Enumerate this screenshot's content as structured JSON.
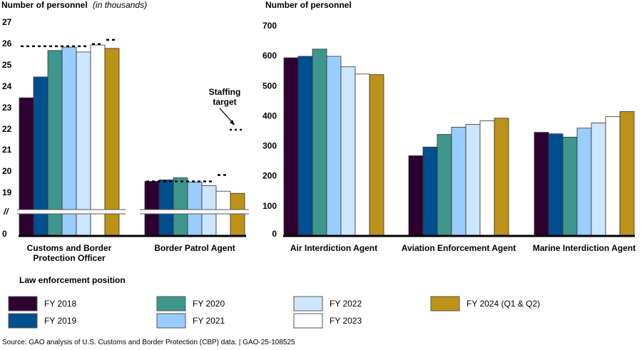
{
  "chart_data": [
    {
      "type": "bar",
      "title": "Number of personnel",
      "title_italic_suffix": "(in thousands)",
      "xlabel": "",
      "ylabel": "Number of personnel (in thousands)",
      "ylim": [
        0,
        27
      ],
      "axis_break": {
        "from": 0,
        "to": 18.5,
        "label": "//"
      },
      "yticks": [
        "27",
        "26",
        "25",
        "24",
        "23",
        "22",
        "21",
        "20",
        "19",
        "0"
      ],
      "categories": [
        "Customs and Border Protection Officer",
        "Border Patrol Agent"
      ],
      "category_label_lines": [
        [
          "Customs and Border",
          "Protection Officer"
        ],
        [
          "Border Patrol Agent"
        ]
      ],
      "series": [
        {
          "name": "FY 2018",
          "values": [
            23.45,
            19.53
          ]
        },
        {
          "name": "FY 2019",
          "values": [
            24.43,
            19.6
          ]
        },
        {
          "name": "FY 2020",
          "values": [
            25.67,
            19.7
          ]
        },
        {
          "name": "FY 2021",
          "values": [
            25.83,
            19.5
          ]
        },
        {
          "name": "FY 2022",
          "values": [
            25.6,
            19.33
          ]
        },
        {
          "name": "FY 2023",
          "values": [
            25.93,
            19.07
          ]
        },
        {
          "name": "FY 2024 (Q1 & Q2)",
          "values": [
            25.77,
            18.97
          ]
        }
      ],
      "staffing_target": [
        {
          "category": "Customs and Border Protection Officer",
          "years": [
            "FY 2018",
            "FY 2019",
            "FY 2020",
            "FY 2021",
            "FY 2022"
          ],
          "value": 25.87
        },
        {
          "category": "Customs and Border Protection Officer",
          "years": [
            "FY 2023"
          ],
          "value": 25.97
        },
        {
          "category": "Customs and Border Protection Officer",
          "years": [
            "FY 2024 (Q1 & Q2)"
          ],
          "value": 26.17
        },
        {
          "category": "Border Patrol Agent",
          "years": [
            "FY 2018",
            "FY 2019",
            "FY 2020",
            "FY 2021",
            "FY 2022"
          ],
          "value": 19.53
        },
        {
          "category": "Border Patrol Agent",
          "years": [
            "FY 2023"
          ],
          "value": 19.83
        }
      ],
      "annotation": {
        "text_lines": [
          "Staffing",
          "target"
        ],
        "marker_value": 21.9
      },
      "grid": false
    },
    {
      "type": "bar",
      "title": "Number of personnel",
      "xlabel": "",
      "ylabel": "Number of personnel",
      "ylim": [
        0,
        700
      ],
      "yticks": [
        "700",
        "600",
        "500",
        "400",
        "300",
        "200",
        "100",
        "0"
      ],
      "categories": [
        "Air Interdiction Agent",
        "Aviation Enforcement Agent",
        "Marine Interdiction Agent"
      ],
      "series": [
        {
          "name": "FY 2018",
          "values": [
            593,
            267,
            345
          ]
        },
        {
          "name": "FY 2019",
          "values": [
            598,
            296,
            340
          ]
        },
        {
          "name": "FY 2020",
          "values": [
            622,
            338,
            329
          ]
        },
        {
          "name": "FY 2021",
          "values": [
            598,
            362,
            359
          ]
        },
        {
          "name": "FY 2022",
          "values": [
            563,
            371,
            376
          ]
        },
        {
          "name": "FY 2023",
          "values": [
            539,
            383,
            397
          ]
        },
        {
          "name": "FY 2024 (Q1 & Q2)",
          "values": [
            537,
            392,
            414
          ]
        }
      ],
      "grid": false
    }
  ],
  "legend": {
    "title": "Law enforcement position",
    "placement": "bottom",
    "items": [
      {
        "label": "FY 2018",
        "color": "#2e0030"
      },
      {
        "label": "FY 2019",
        "color": "#004f8f"
      },
      {
        "label": "FY 2020",
        "color": "#3f968c"
      },
      {
        "label": "FY 2021",
        "color": "#99ccff"
      },
      {
        "label": "FY 2022",
        "color": "#cce6ff"
      },
      {
        "label": "FY 2023",
        "color": "#ffffff"
      },
      {
        "label": "FY 2024 (Q1 & Q2)",
        "color": "#bd9218"
      }
    ]
  },
  "source": "Source: GAO analysis of U.S. Customs and Border Protection (CBP) data.  |  GAO-25-108525"
}
